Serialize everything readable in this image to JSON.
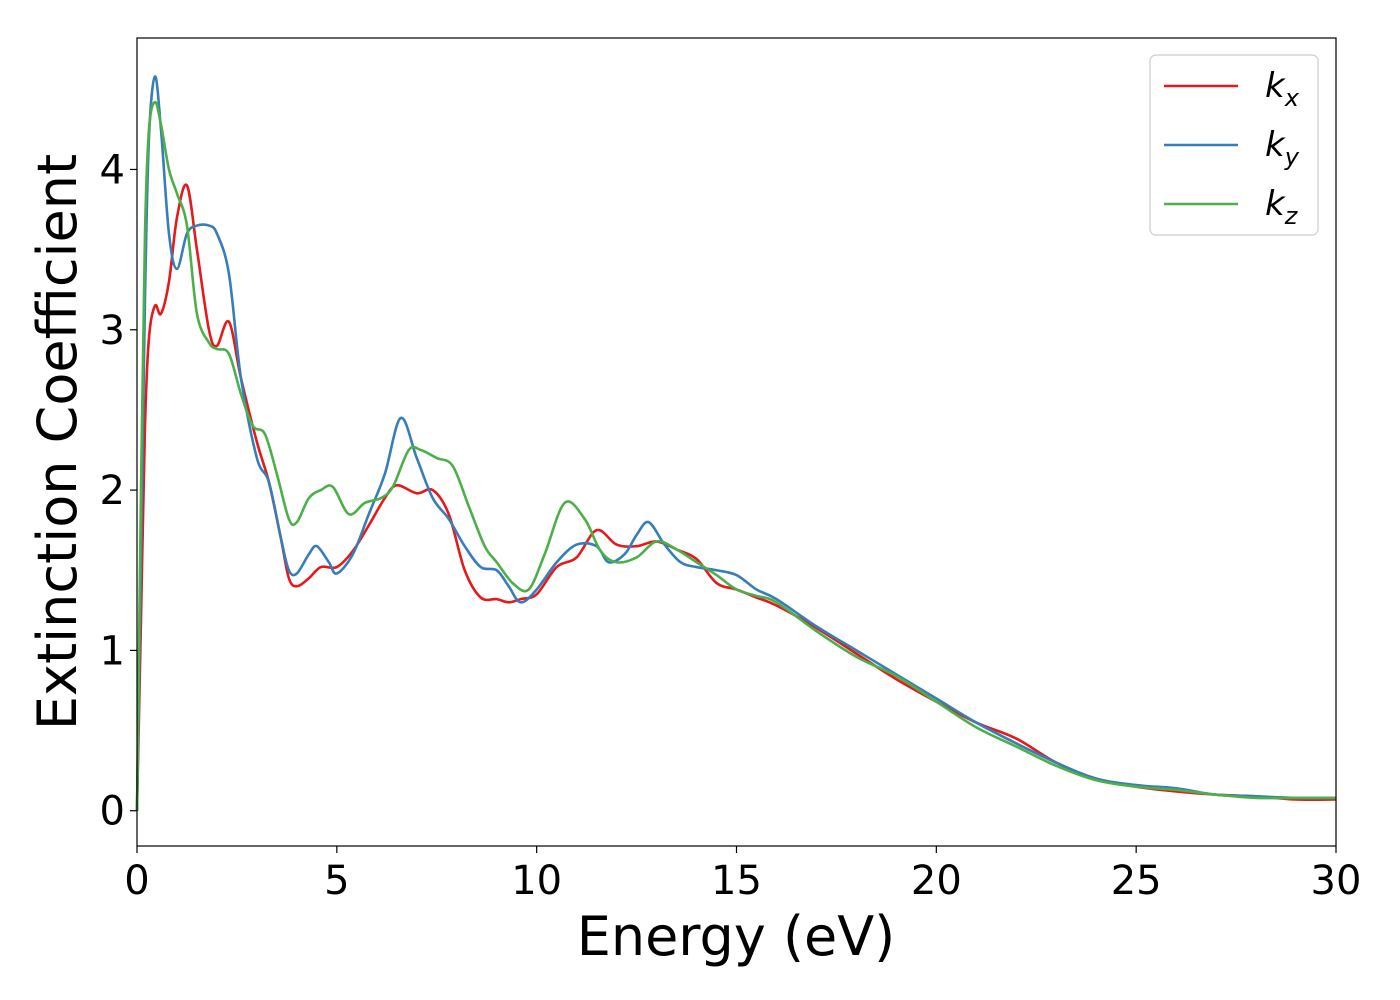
{
  "chart_data": {
    "type": "line",
    "xlabel": "Energy (eV)",
    "ylabel": "Extinction Coefficient",
    "xlim": [
      0,
      30
    ],
    "ylim": [
      -0.22,
      4.82
    ],
    "xticks": [
      0,
      5,
      10,
      15,
      20,
      25,
      30
    ],
    "xtick_labels": [
      "0",
      "5",
      "10",
      "15",
      "20",
      "25",
      "30"
    ],
    "yticks": [
      0,
      1,
      2,
      3,
      4
    ],
    "ytick_labels": [
      "0",
      "1",
      "2",
      "3",
      "4"
    ],
    "grid": false,
    "legend_position": "top-right",
    "series": [
      {
        "name": "k",
        "subscript": "x",
        "color": "#e41a1c",
        "x": [
          0,
          0.1,
          0.2,
          0.3,
          0.45,
          0.6,
          0.8,
          1.0,
          1.25,
          1.5,
          1.8,
          2.0,
          2.3,
          2.6,
          3.0,
          3.3,
          3.6,
          3.8,
          4.0,
          4.3,
          4.6,
          5.0,
          5.4,
          5.8,
          6.2,
          6.5,
          7.0,
          7.4,
          7.8,
          8.2,
          8.6,
          9.0,
          9.3,
          9.6,
          10.0,
          10.5,
          11.0,
          11.5,
          12.0,
          12.5,
          13.0,
          13.5,
          14.0,
          14.5,
          15.0,
          15.5,
          16.0,
          17.0,
          18.0,
          19.0,
          20.0,
          21.0,
          22.0,
          23.0,
          24.0,
          25.0,
          26.0,
          27.0,
          28.0,
          29.0,
          30.0
        ],
        "values": [
          0.0,
          1.2,
          2.4,
          2.95,
          3.15,
          3.1,
          3.3,
          3.7,
          3.9,
          3.5,
          3.0,
          2.9,
          3.05,
          2.7,
          2.3,
          2.05,
          1.7,
          1.45,
          1.4,
          1.45,
          1.52,
          1.52,
          1.62,
          1.78,
          1.95,
          2.03,
          1.98,
          2.0,
          1.85,
          1.5,
          1.33,
          1.32,
          1.3,
          1.32,
          1.35,
          1.52,
          1.58,
          1.75,
          1.66,
          1.65,
          1.68,
          1.63,
          1.57,
          1.42,
          1.38,
          1.33,
          1.28,
          1.14,
          0.98,
          0.82,
          0.68,
          0.55,
          0.45,
          0.3,
          0.2,
          0.15,
          0.12,
          0.1,
          0.09,
          0.07,
          0.07
        ]
      },
      {
        "name": "k",
        "subscript": "y",
        "color": "#377eb8",
        "x": [
          0,
          0.1,
          0.2,
          0.3,
          0.45,
          0.6,
          0.8,
          1.0,
          1.25,
          1.5,
          1.8,
          2.0,
          2.3,
          2.6,
          3.0,
          3.3,
          3.6,
          3.8,
          4.0,
          4.3,
          4.5,
          4.8,
          5.0,
          5.4,
          5.8,
          6.2,
          6.6,
          7.0,
          7.4,
          7.8,
          8.2,
          8.6,
          9.0,
          9.3,
          9.6,
          10.0,
          10.5,
          11.0,
          11.5,
          11.8,
          12.2,
          12.5,
          12.8,
          13.2,
          13.6,
          14.0,
          14.5,
          15.0,
          15.5,
          16.0,
          17.0,
          18.0,
          19.0,
          20.0,
          21.0,
          22.0,
          23.0,
          24.0,
          25.0,
          26.0,
          27.0,
          28.0,
          29.0,
          30.0
        ],
        "values": [
          0.0,
          1.6,
          3.2,
          4.2,
          4.58,
          4.25,
          3.6,
          3.38,
          3.6,
          3.65,
          3.65,
          3.6,
          3.35,
          2.7,
          2.2,
          2.05,
          1.7,
          1.5,
          1.48,
          1.6,
          1.65,
          1.55,
          1.48,
          1.6,
          1.85,
          2.1,
          2.45,
          2.2,
          1.95,
          1.82,
          1.65,
          1.52,
          1.5,
          1.4,
          1.3,
          1.38,
          1.55,
          1.66,
          1.65,
          1.55,
          1.6,
          1.72,
          1.8,
          1.66,
          1.55,
          1.52,
          1.5,
          1.47,
          1.38,
          1.32,
          1.15,
          1.0,
          0.85,
          0.7,
          0.55,
          0.42,
          0.3,
          0.2,
          0.16,
          0.14,
          0.1,
          0.09,
          0.08,
          0.08
        ]
      },
      {
        "name": "k",
        "subscript": "z",
        "color": "#4daf4a",
        "x": [
          0,
          0.1,
          0.2,
          0.3,
          0.45,
          0.6,
          0.8,
          1.0,
          1.25,
          1.5,
          1.8,
          2.0,
          2.3,
          2.6,
          2.9,
          3.2,
          3.5,
          3.8,
          4.0,
          4.3,
          4.6,
          4.9,
          5.3,
          5.7,
          6.1,
          6.4,
          6.8,
          7.1,
          7.5,
          7.9,
          8.3,
          8.7,
          9.0,
          9.4,
          9.8,
          10.2,
          10.7,
          11.2,
          11.6,
          12.0,
          12.5,
          13.0,
          13.5,
          14.0,
          14.5,
          15.0,
          15.5,
          16.0,
          17.0,
          18.0,
          19.0,
          20.0,
          21.0,
          22.0,
          23.0,
          24.0,
          25.0,
          26.0,
          27.0,
          28.0,
          29.0,
          30.0
        ],
        "values": [
          0.0,
          2.0,
          3.6,
          4.25,
          4.42,
          4.28,
          4.0,
          3.85,
          3.65,
          3.1,
          2.92,
          2.88,
          2.85,
          2.6,
          2.4,
          2.35,
          2.1,
          1.82,
          1.8,
          1.95,
          2.0,
          2.02,
          1.85,
          1.92,
          1.95,
          2.02,
          2.25,
          2.25,
          2.2,
          2.15,
          1.9,
          1.65,
          1.55,
          1.42,
          1.38,
          1.6,
          1.92,
          1.82,
          1.62,
          1.55,
          1.58,
          1.68,
          1.63,
          1.55,
          1.47,
          1.38,
          1.34,
          1.3,
          1.12,
          0.96,
          0.84,
          0.68,
          0.52,
          0.4,
          0.28,
          0.19,
          0.15,
          0.13,
          0.1,
          0.08,
          0.08,
          0.08
        ]
      }
    ]
  }
}
